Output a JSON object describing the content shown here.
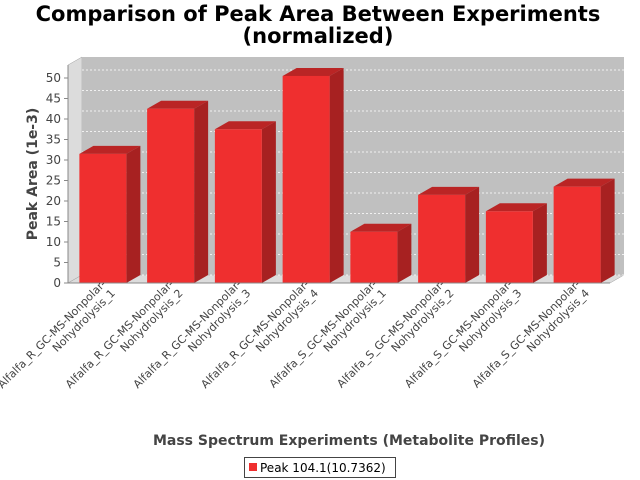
{
  "chart_data": {
    "type": "bar",
    "title_line1": "Comparison of Peak Area Between Experiments",
    "title_line2": "(normalized)",
    "xlabel": "Mass Spectrum Experiments (Metabolite Profiles)",
    "ylabel": "Peak Area (1e-3)",
    "ylim": [
      0,
      53
    ],
    "yticks": [
      "0",
      "5",
      "10",
      "15",
      "20",
      "25",
      "30",
      "35",
      "40",
      "45",
      "50"
    ],
    "grid": true,
    "legend_position": "bottom",
    "bar_color": "#ef2f2f",
    "categories": [
      [
        "Alfalfa_R_GC-MS-Nonpolar-",
        "Nohydrolysis_1"
      ],
      [
        "Alfalfa_R_GC-MS-Nonpolar-",
        "Nohydrolysis_2"
      ],
      [
        "Alfalfa_R_GC-MS-Nonpolar-",
        "Nohydrolysis_3"
      ],
      [
        "Alfalfa_R_GC-MS-Nonpolar-",
        "Nohydrolysis_4"
      ],
      [
        "Alfalfa_S_GC-MS-Nonpolar-",
        "Nohydrolysis_1"
      ],
      [
        "Alfalfa_S_GC-MS-Nonpolar-",
        "Nohydrolysis_2"
      ],
      [
        "Alfalfa_S_GC-MS-Nonpolar-",
        "Nohydrolysis_3"
      ],
      [
        "Alfalfa_S_GC-MS-Nonpolar-",
        "Nohydrolysis_4"
      ]
    ],
    "series": [
      {
        "name": "Peak 104.1(10.7362)",
        "values": [
          31.5,
          42.5,
          37.5,
          50.5,
          12.5,
          21.5,
          17.5,
          23.5
        ]
      }
    ]
  }
}
